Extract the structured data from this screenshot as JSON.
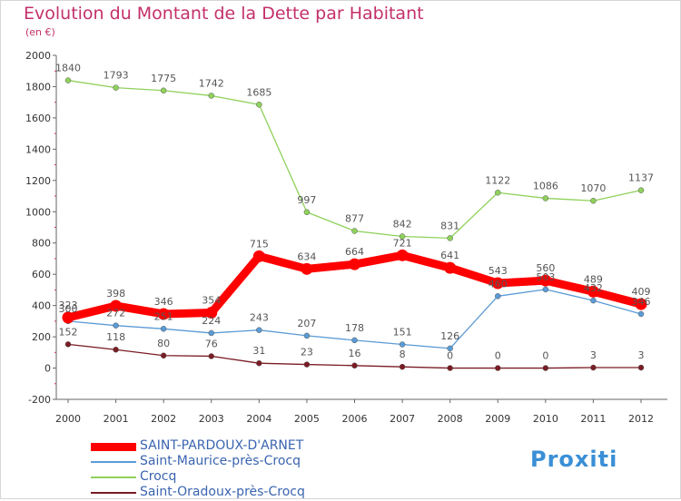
{
  "header": {
    "title": "Evolution du Montant de la Dette par Habitant",
    "subtitle": "(en €)"
  },
  "logo": {
    "text": "Proxiti"
  },
  "chart_data": {
    "type": "line",
    "title": "Evolution du Montant de la Dette par Habitant",
    "subtitle": "(en €)",
    "xlabel": "",
    "ylabel": "",
    "ylim": [
      -200,
      2000
    ],
    "yticks": [
      -200,
      0,
      200,
      400,
      600,
      800,
      1000,
      1200,
      1400,
      1600,
      1800,
      2000
    ],
    "grid": false,
    "legend_position": "bottom-left",
    "x": [
      "2000",
      "2001",
      "2002",
      "2003",
      "2004",
      "2005",
      "2006",
      "2007",
      "2008",
      "2009",
      "2010",
      "2011",
      "2012"
    ],
    "series": [
      {
        "name": "SAINT-PARDOUX-D'ARNET",
        "color": "#ff0000",
        "values": [
          323,
          398,
          346,
          354,
          715,
          634,
          664,
          721,
          641,
          543,
          560,
          489,
          409
        ]
      },
      {
        "name": "Saint-Maurice-près-Crocq",
        "color": "#5b9bd5",
        "values": [
          300,
          272,
          251,
          224,
          243,
          207,
          178,
          151,
          126,
          460,
          503,
          432,
          346
        ]
      },
      {
        "name": "Crocq",
        "color": "#8fd15b",
        "values": [
          1840,
          1793,
          1775,
          1742,
          1685,
          997,
          877,
          842,
          831,
          1122,
          1086,
          1070,
          1137
        ]
      },
      {
        "name": "Saint-Oradoux-près-Crocq",
        "color": "#7a1c24",
        "values": [
          152,
          118,
          80,
          76,
          31,
          23,
          16,
          8,
          0,
          0,
          0,
          3,
          3
        ]
      }
    ]
  }
}
